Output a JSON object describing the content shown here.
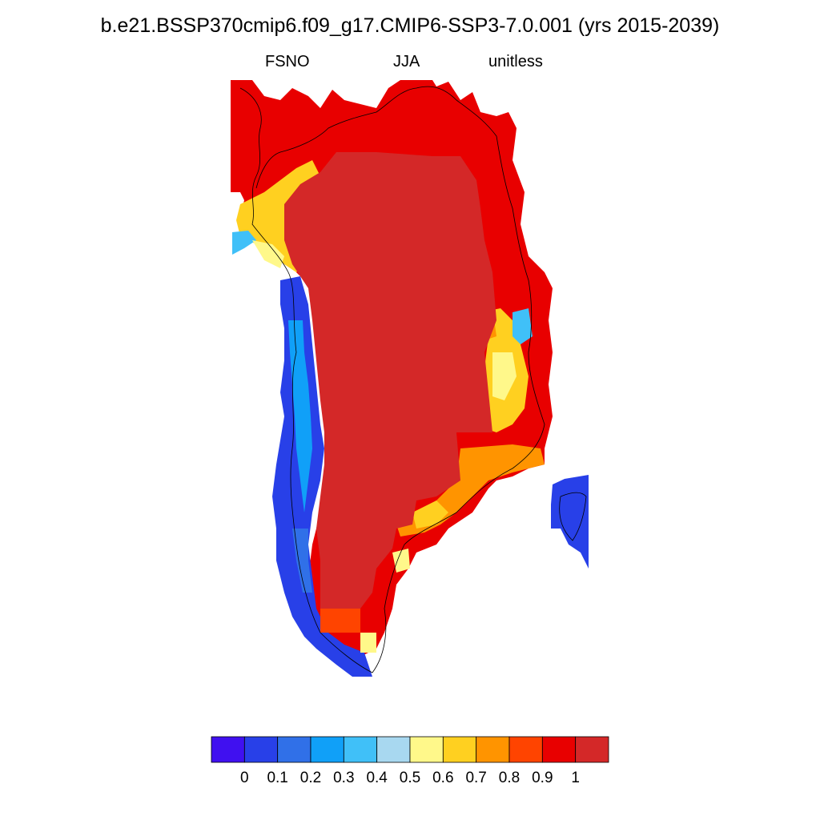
{
  "title": "b.e21.BSSP370cmip6.f09_g17.CMIP6-SSP3-7.0.001 (yrs 2015-2039)",
  "subtitle": {
    "left": "FSNO",
    "center": "JJA",
    "right": "unitless"
  },
  "colorbar": {
    "colors": [
      "#4010f0",
      "#2840e8",
      "#3070e8",
      "#10a0f8",
      "#40c0f8",
      "#a8d8f0",
      "#fff88a",
      "#ffd020",
      "#ff9400",
      "#ff4400",
      "#e80000",
      "#d42828"
    ],
    "tick_labels": [
      "0",
      "0.1",
      "0.2",
      "0.3",
      "0.4",
      "0.5",
      "0.6",
      "0.7",
      "0.8",
      "0.9",
      "1"
    ]
  },
  "map_data": {
    "variable": "FSNO",
    "season": "JJA",
    "units": "unitless",
    "region": "Greenland",
    "interior_value": 1.0,
    "west_coast_value": 0.1,
    "east_coast_value": 0.9,
    "east_island_value": 0.1
  }
}
